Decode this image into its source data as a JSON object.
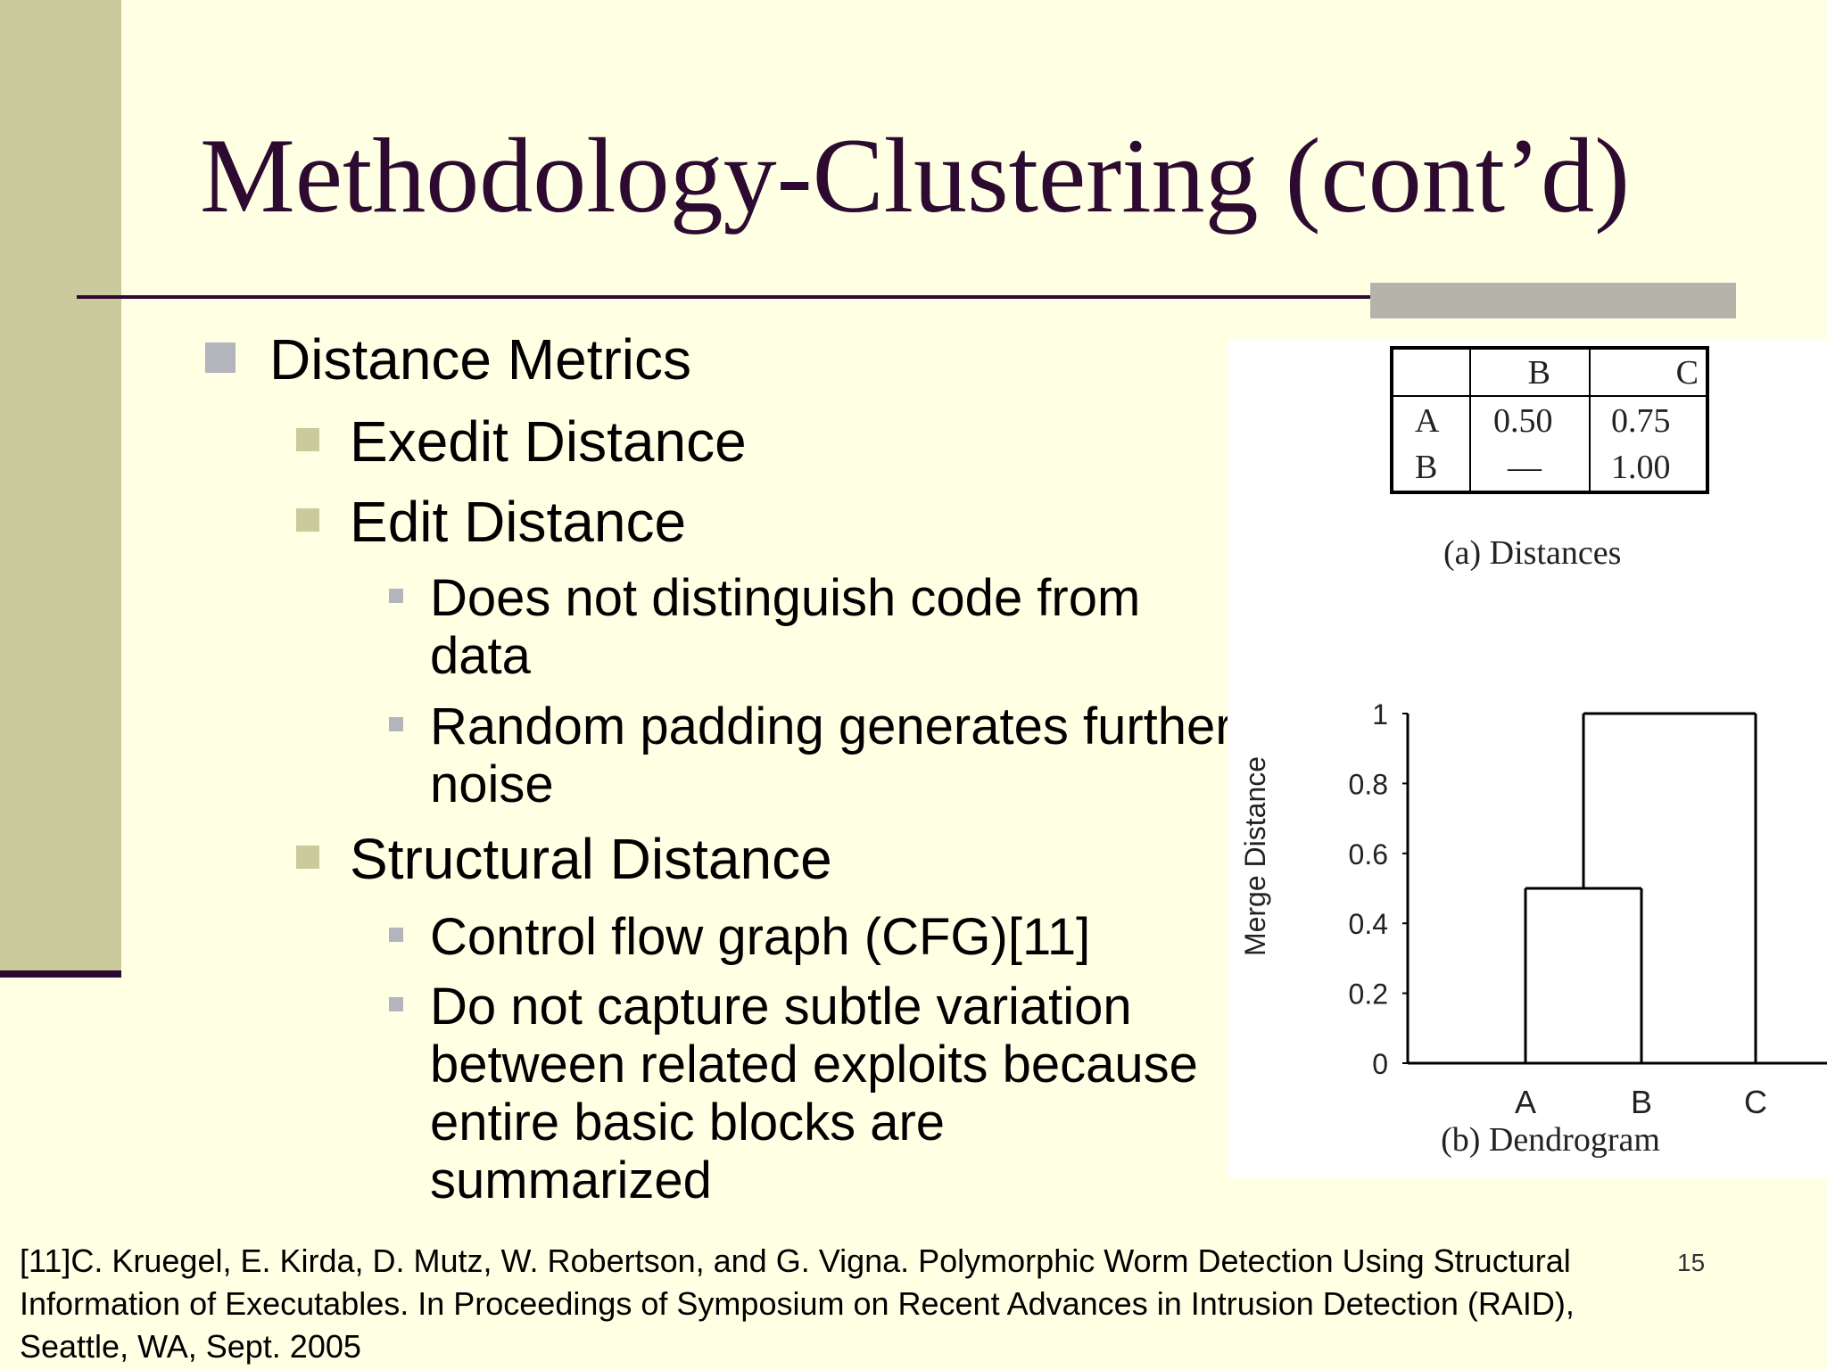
{
  "slide": {
    "title": "Methodology-Clustering (cont’d)",
    "bullets": {
      "distance_metrics": "Distance Metrics",
      "exedit": "Exedit Distance",
      "edit": "Edit Distance",
      "edit_sub1_line1": "Does not distinguish code from",
      "edit_sub1_line2": "data",
      "edit_sub2_line1": "Random padding generates further",
      "edit_sub2_line2": "noise",
      "structural": "Structural Distance",
      "struct_sub1": "Control flow graph (CFG)[11]",
      "struct_sub2_line1": "Do not capture subtle variation",
      "struct_sub2_line2": "between related exploits because",
      "struct_sub2_line3": "entire basic blocks are",
      "struct_sub2_line4": "summarized"
    },
    "reference": {
      "line1": "[11]C. Kruegel, E. Kirda, D. Mutz, W. Robertson, and G. Vigna. Polymorphic Worm Detection Using Structural",
      "line2": "Information of Executables. In Proceedings of Symposium on Recent Advances in Intrusion Detection (RAID),",
      "line3": "Seattle, WA, Sept. 2005"
    },
    "page_number": "15"
  },
  "figure": {
    "table": {
      "headers": [
        "",
        "B",
        "C"
      ],
      "rows": [
        [
          "A",
          "0.50",
          "0.75"
        ],
        [
          "B",
          "—",
          "1.00"
        ]
      ],
      "caption": "(a) Distances"
    },
    "dendrogram": {
      "caption": "(b) Dendrogram",
      "ylabel": "Merge Distance"
    }
  },
  "chart_data": {
    "type": "dendrogram",
    "title": "",
    "xlabel": "",
    "ylabel": "Merge Distance",
    "ylim": [
      0,
      1
    ],
    "yticks": [
      "0",
      "0.2",
      "0.4",
      "0.6",
      "0.8",
      "1"
    ],
    "leaves": [
      "A",
      "B",
      "C"
    ],
    "merges": [
      {
        "members": [
          "A",
          "B"
        ],
        "height": 0.5
      },
      {
        "members": [
          "AB",
          "C"
        ],
        "height": 1.0
      }
    ]
  }
}
